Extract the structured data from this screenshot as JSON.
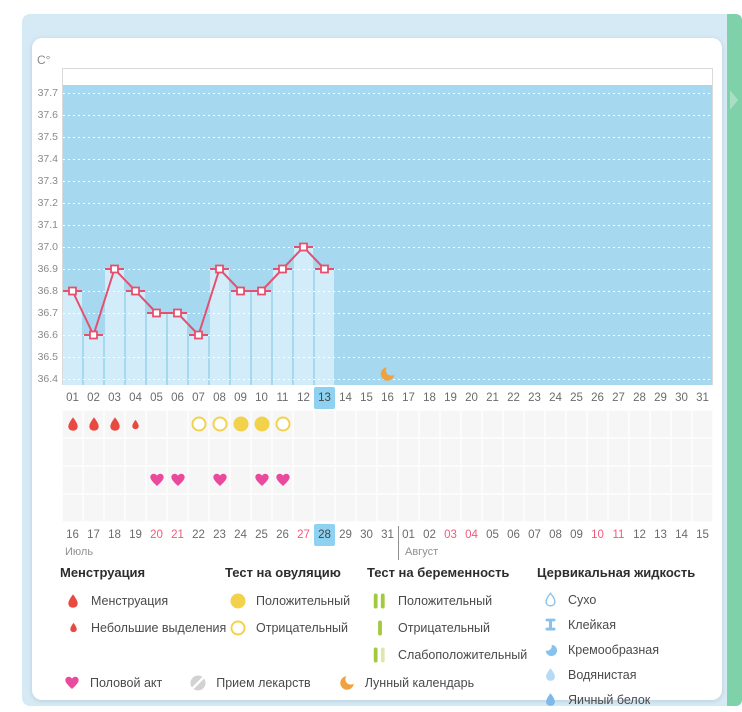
{
  "colors": {
    "panel_blue": "#d6eaf5",
    "strip_green": "#7fd1a9",
    "chart_bg": "#a6d8ef",
    "chart_bar": "#d3ecf9",
    "line_pink": "#e5506f",
    "selected_day_bg": "#8ed1f0",
    "red_date": "#f4597d",
    "menstruation_red": "#e84a41",
    "heart_pink": "#ea4a9e",
    "ovulation_yellow": "#f2d24b",
    "test_green": "#a3c93e",
    "test_green_pale": "#dbe9af",
    "fluid_blue": "#88c2ec",
    "fluid_blue_light": "#b4daf4",
    "fluid_blue_deep": "#7db9ea",
    "moon_orange": "#f0a23f",
    "pill_gray": "#d2d2d2"
  },
  "chart_data": {
    "type": "line",
    "unit_label": "C°",
    "ylim": [
      36.4,
      37.7
    ],
    "grid": "dotted-horizontal",
    "y_ticks": [
      "37.7",
      "37.6",
      "37.5",
      "37.4",
      "37.3",
      "37.2",
      "37.1",
      "37.0",
      "36.9",
      "36.8",
      "36.7",
      "36.6",
      "36.5",
      "36.4"
    ],
    "x_days": [
      "01",
      "02",
      "03",
      "04",
      "05",
      "06",
      "07",
      "08",
      "09",
      "10",
      "11",
      "12",
      "13",
      "14",
      "15",
      "16",
      "17",
      "18",
      "19",
      "20",
      "21",
      "22",
      "23",
      "24",
      "25",
      "26",
      "27",
      "28",
      "29",
      "30",
      "31"
    ],
    "selected_day": "13",
    "series": [
      {
        "name": "temperature",
        "days": [
          1,
          2,
          3,
          4,
          5,
          6,
          7,
          8,
          9,
          10,
          11,
          12,
          13
        ],
        "values": [
          36.8,
          36.6,
          36.9,
          36.8,
          36.7,
          36.7,
          36.6,
          36.9,
          36.8,
          36.8,
          36.9,
          37.0,
          36.9
        ]
      }
    ],
    "moon_day": 16
  },
  "marker_rows": [
    {
      "name": "menstruation-and-ovulation-tests",
      "markers": [
        {
          "day": 1,
          "icon": "drop-large"
        },
        {
          "day": 2,
          "icon": "drop-large"
        },
        {
          "day": 3,
          "icon": "drop-large"
        },
        {
          "day": 4,
          "icon": "drop-small"
        },
        {
          "day": 7,
          "icon": "circle-outline"
        },
        {
          "day": 8,
          "icon": "circle-outline"
        },
        {
          "day": 9,
          "icon": "circle-filled"
        },
        {
          "day": 10,
          "icon": "circle-filled"
        },
        {
          "day": 11,
          "icon": "circle-outline"
        }
      ]
    },
    {
      "name": "pregnancy-tests",
      "markers": []
    },
    {
      "name": "intercourse",
      "markers": [
        {
          "day": 5,
          "icon": "heart"
        },
        {
          "day": 6,
          "icon": "heart"
        },
        {
          "day": 8,
          "icon": "heart"
        },
        {
          "day": 10,
          "icon": "heart"
        },
        {
          "day": 11,
          "icon": "heart"
        }
      ]
    },
    {
      "name": "medication",
      "markers": []
    }
  ],
  "cycle_dates": {
    "segments": [
      {
        "month": "Июль",
        "days": [
          "16",
          "17",
          "18",
          "19",
          "20",
          "21",
          "22",
          "23",
          "24",
          "25",
          "26",
          "27",
          "28",
          "29",
          "30",
          "31"
        ],
        "red_days": [
          "20",
          "21",
          "27"
        ],
        "selected_day": "28"
      },
      {
        "month": "Август",
        "days": [
          "01",
          "02",
          "03",
          "04",
          "05",
          "06",
          "07",
          "08",
          "09",
          "10",
          "11",
          "12",
          "13",
          "14",
          "15"
        ],
        "red_days": [
          "03",
          "04",
          "10",
          "11"
        ],
        "selected_day": null
      }
    ]
  },
  "legend": {
    "columns": [
      {
        "title": "Менструация",
        "items": [
          {
            "icon": "drop-large",
            "label": "Менструация"
          },
          {
            "icon": "drop-small",
            "label": "Небольшие выделения"
          }
        ]
      },
      {
        "title": "Тест на овуляцию",
        "items": [
          {
            "icon": "circle-filled",
            "label": "Положительный"
          },
          {
            "icon": "circle-outline",
            "label": "Отрицательный"
          }
        ]
      },
      {
        "title": "Тест на беременность",
        "items": [
          {
            "icon": "test-positive",
            "label": "Положительный"
          },
          {
            "icon": "test-negative",
            "label": "Отрицательный"
          },
          {
            "icon": "test-weak",
            "label": "Слабоположительный"
          }
        ]
      },
      {
        "title": "Цервикальная жидкость",
        "items": [
          {
            "icon": "fluid-dry",
            "label": "Сухо"
          },
          {
            "icon": "fluid-sticky",
            "label": "Клейкая"
          },
          {
            "icon": "fluid-creamy",
            "label": "Кремообразная"
          },
          {
            "icon": "fluid-watery",
            "label": "Водянистая"
          },
          {
            "icon": "fluid-eggwhite",
            "label": "Яичный белок"
          }
        ]
      }
    ],
    "bottom_items": [
      {
        "icon": "heart",
        "label": "Половой акт"
      },
      {
        "icon": "pill",
        "label": "Прием лекарств"
      },
      {
        "icon": "moon",
        "label": "Лунный календарь"
      }
    ]
  }
}
